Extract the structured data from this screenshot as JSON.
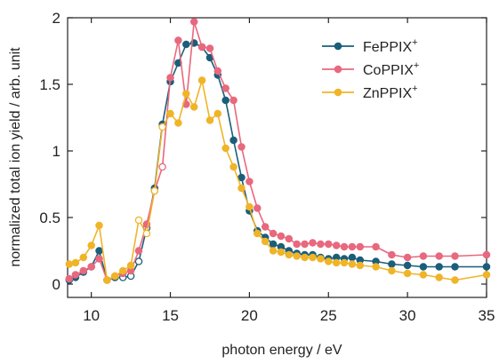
{
  "chart_data": {
    "type": "line",
    "xlabel": "photon energy / eV",
    "ylabel": "normalized total ion yield / arb. unit",
    "xlim": [
      8.5,
      35
    ],
    "ylim": [
      -0.1,
      2
    ],
    "x_ticks": [
      10,
      15,
      20,
      25,
      30,
      35
    ],
    "x_tick_labels": [
      "10",
      "15",
      "20",
      "25",
      "30",
      "35"
    ],
    "y_ticks": [
      0,
      0.5,
      1,
      1.5,
      2
    ],
    "y_tick_labels": [
      "0",
      "0.5",
      "1",
      "1.5",
      "2"
    ],
    "grid": false,
    "legend_position": "top-right",
    "legend": {
      "entries": [
        {
          "base": "FePPIX",
          "sup": "+"
        },
        {
          "base": "CoPPIX",
          "sup": "+"
        },
        {
          "base": "ZnPPIX",
          "sup": "+"
        }
      ]
    },
    "series": [
      {
        "name": "FePPIX+",
        "color": "#1a5e7a",
        "x": [
          8.6,
          9.0,
          9.5,
          10.0,
          10.5,
          11.0,
          11.5,
          12.0,
          12.5,
          13.0,
          13.5,
          14.0,
          14.5,
          15.0,
          15.5,
          16.0,
          16.5,
          17.0,
          17.5,
          18.0,
          18.5,
          19.0,
          19.5,
          20.0,
          20.5,
          21.0,
          21.5,
          22.0,
          22.5,
          23.0,
          23.5,
          24.0,
          24.5,
          25.0,
          25.5,
          26.0,
          26.5,
          27.0,
          28.0,
          29.0,
          30.0,
          31.0,
          32.0,
          33.0,
          35.0
        ],
        "y": [
          0.03,
          0.05,
          0.09,
          0.13,
          0.25,
          0.03,
          0.05,
          0.05,
          0.06,
          0.17,
          0.42,
          0.72,
          1.2,
          1.52,
          1.66,
          1.8,
          1.81,
          1.78,
          1.7,
          1.57,
          1.38,
          1.08,
          0.8,
          0.55,
          0.4,
          0.35,
          0.3,
          0.28,
          0.25,
          0.23,
          0.22,
          0.22,
          0.2,
          0.19,
          0.2,
          0.19,
          0.2,
          0.18,
          0.17,
          0.15,
          0.14,
          0.13,
          0.13,
          0.13,
          0.13
        ],
        "open_markers_x": [
          12.0,
          12.5,
          13.0,
          13.5
        ]
      },
      {
        "name": "CoPPIX+",
        "color": "#e8687e",
        "x": [
          8.6,
          9.0,
          9.5,
          10.0,
          10.5,
          11.0,
          11.5,
          12.0,
          12.5,
          13.0,
          13.5,
          14.0,
          14.5,
          15.0,
          15.5,
          16.0,
          16.5,
          17.0,
          17.5,
          18.0,
          18.5,
          19.0,
          19.5,
          20.0,
          20.5,
          21.0,
          21.5,
          22.0,
          22.5,
          23.0,
          23.5,
          24.0,
          24.5,
          25.0,
          25.5,
          26.0,
          26.5,
          27.0,
          28.0,
          29.0,
          30.0,
          31.0,
          32.0,
          33.0,
          35.0
        ],
        "y": [
          0.04,
          0.07,
          0.1,
          0.13,
          0.19,
          0.03,
          0.06,
          0.08,
          0.1,
          0.25,
          0.45,
          0.7,
          0.88,
          1.55,
          1.83,
          1.35,
          1.97,
          1.78,
          1.77,
          1.6,
          1.47,
          1.38,
          1.03,
          0.77,
          0.57,
          0.43,
          0.38,
          0.36,
          0.34,
          0.3,
          0.3,
          0.31,
          0.3,
          0.3,
          0.29,
          0.28,
          0.28,
          0.28,
          0.28,
          0.22,
          0.2,
          0.21,
          0.21,
          0.21,
          0.22
        ],
        "open_markers_x": [
          14.0,
          14.5
        ]
      },
      {
        "name": "ZnPPIX+",
        "color": "#f0b428",
        "x": [
          8.6,
          9.0,
          9.5,
          10.0,
          10.5,
          11.0,
          11.5,
          12.0,
          12.5,
          13.0,
          13.5,
          14.0,
          14.5,
          15.0,
          15.5,
          16.0,
          16.5,
          17.0,
          17.5,
          18.0,
          18.5,
          19.0,
          19.5,
          20.0,
          20.5,
          21.0,
          21.5,
          22.0,
          22.5,
          23.0,
          23.5,
          24.0,
          24.5,
          25.0,
          25.5,
          26.0,
          26.5,
          27.0,
          28.0,
          29.0,
          30.0,
          31.0,
          32.0,
          33.0,
          35.0
        ],
        "y": [
          0.15,
          0.16,
          0.2,
          0.29,
          0.44,
          0.03,
          0.06,
          0.1,
          0.14,
          0.48,
          0.38,
          0.7,
          1.18,
          1.28,
          1.21,
          1.43,
          1.33,
          1.53,
          1.23,
          1.28,
          1.02,
          0.88,
          0.72,
          0.58,
          0.38,
          0.32,
          0.25,
          0.24,
          0.22,
          0.21,
          0.2,
          0.2,
          0.19,
          0.17,
          0.16,
          0.16,
          0.15,
          0.14,
          0.13,
          0.1,
          0.08,
          0.07,
          0.05,
          0.03,
          0.07
        ],
        "open_markers_x": [
          13.0,
          13.5,
          14.0,
          14.5
        ]
      }
    ]
  }
}
